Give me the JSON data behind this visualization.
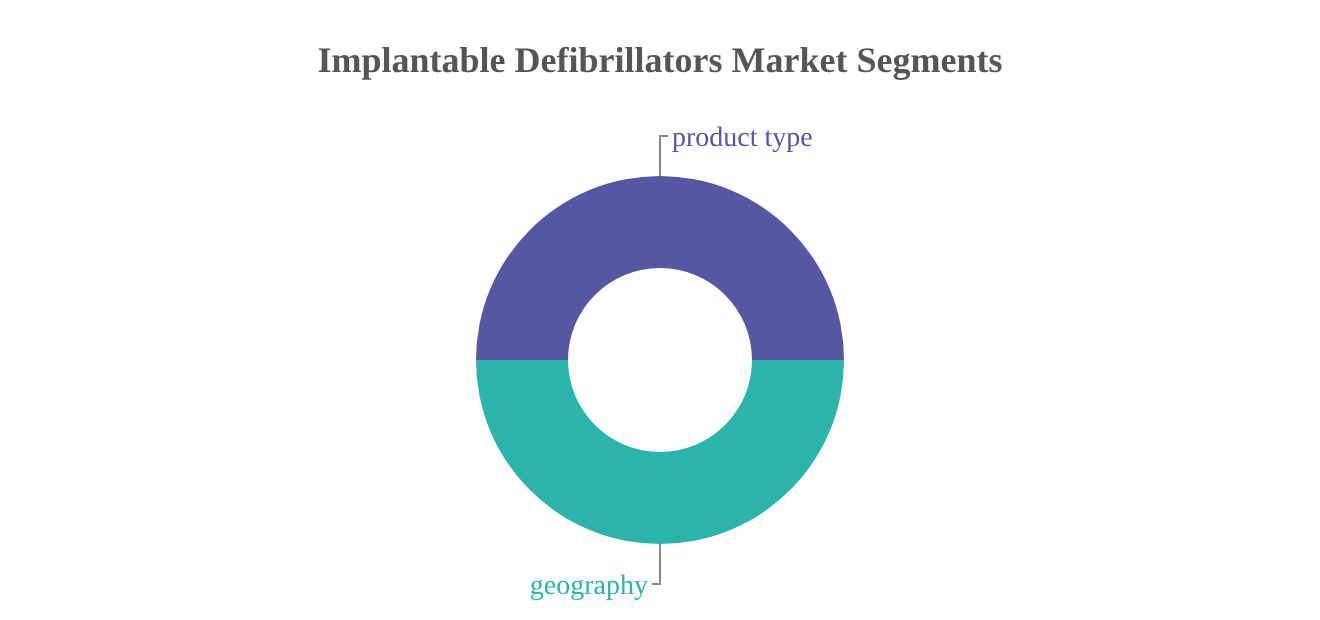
{
  "chart_data": {
    "type": "donut",
    "title": "Implantable Defibrillators Market Segments",
    "categories": [
      "product type",
      "geography"
    ],
    "values": [
      50,
      50
    ],
    "colors": [
      "#5657a3",
      "#2bb5aa"
    ]
  }
}
